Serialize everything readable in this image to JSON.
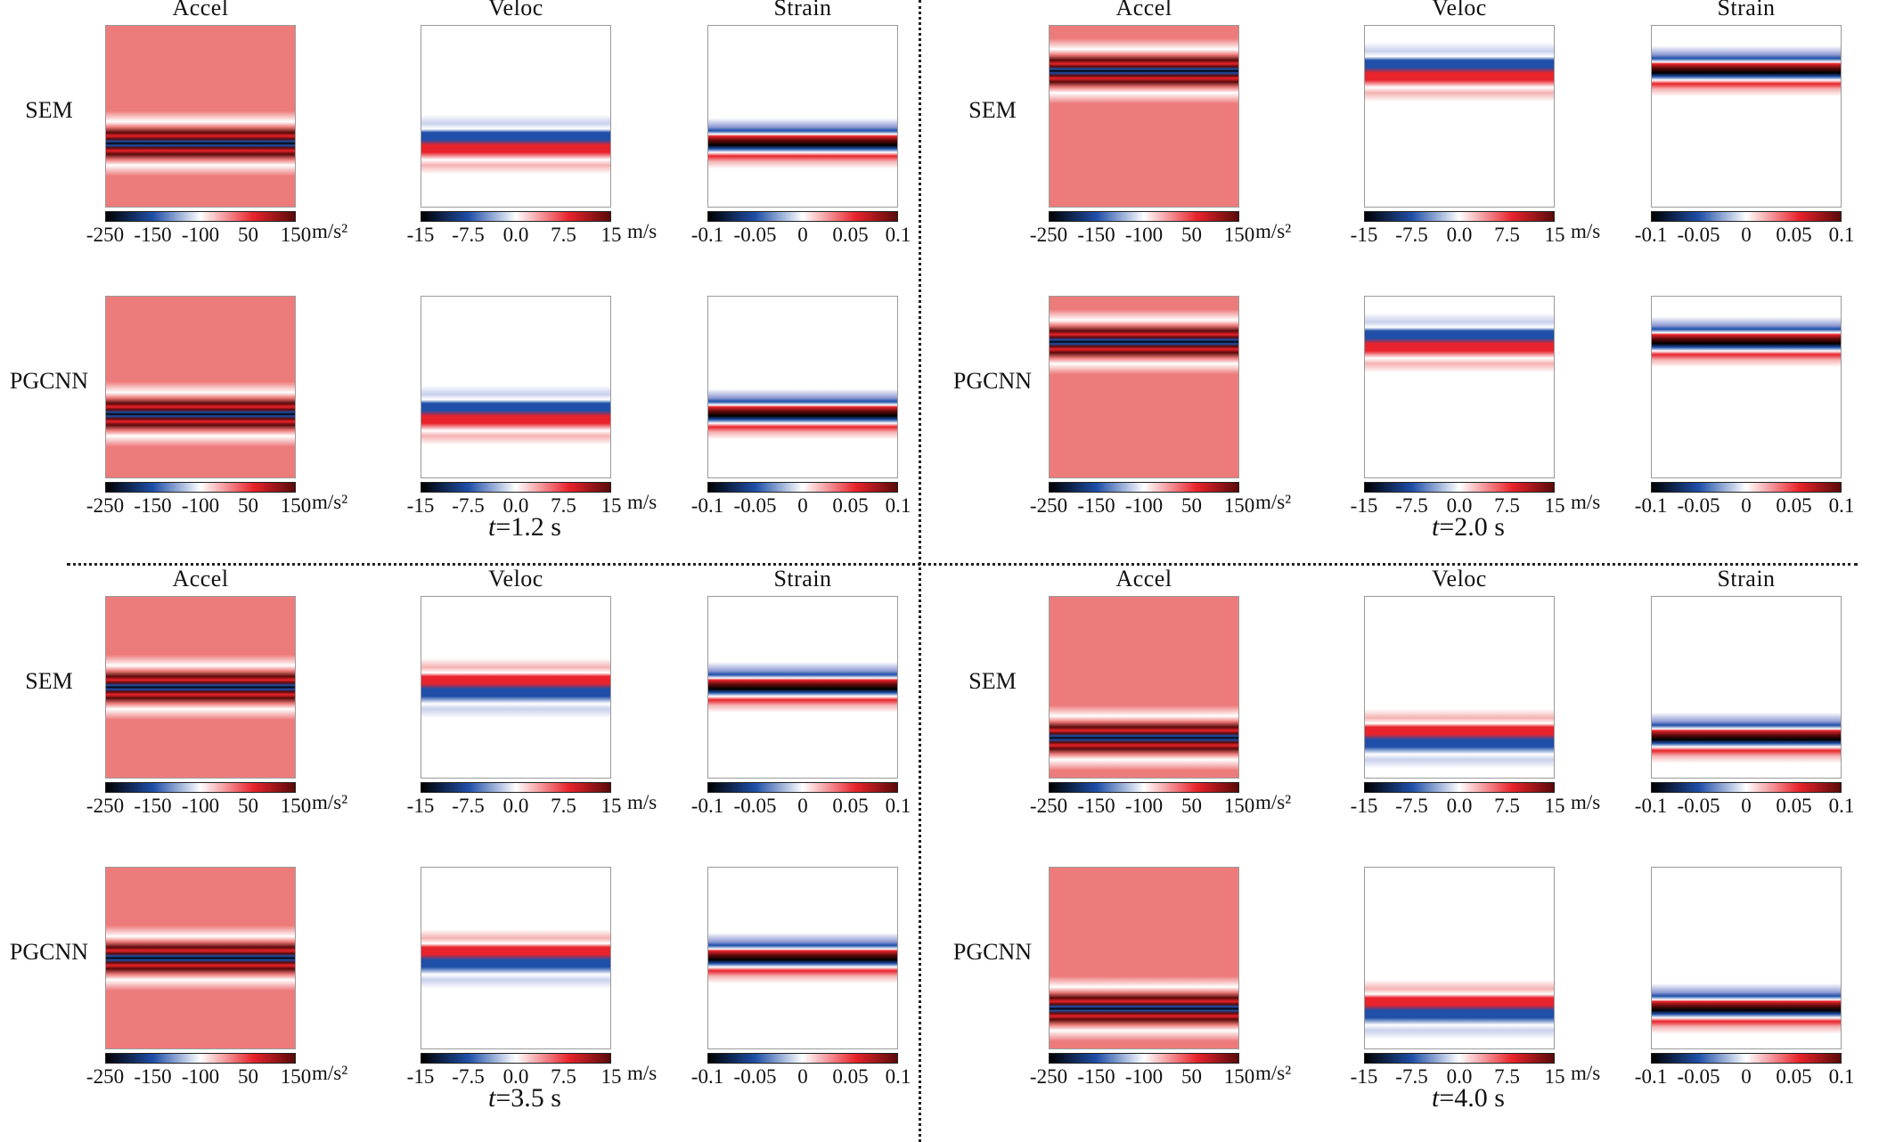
{
  "columns": [
    "Accel",
    "Veloc",
    "Strain"
  ],
  "rows": [
    "SEM",
    "PGCNN"
  ],
  "colorbars": {
    "Accel": {
      "ticks": [
        "-250",
        "-150",
        "-100",
        "50",
        "150"
      ],
      "unit": "m/s²",
      "range": [
        -250,
        150
      ]
    },
    "Veloc": {
      "ticks": [
        "-15",
        "-7.5",
        "0.0",
        "7.5",
        "15"
      ],
      "unit": "m/s",
      "range": [
        -15,
        15
      ]
    },
    "Strain": {
      "ticks": [
        "-0.1",
        "-0.05",
        "0",
        "0.05",
        "0.1"
      ],
      "unit": "",
      "range": [
        -0.1,
        0.1
      ]
    }
  },
  "colors": {
    "low": "#000000",
    "mid_low": "#1f4fa8",
    "zero": "#ffffff",
    "mid_high": "#e8232b",
    "high": "#5a0a0a",
    "accel_background": "#ee7b7b"
  },
  "chart_data": [
    {
      "type": "heatmap",
      "time": "t=1.2 s",
      "time_var": "t",
      "time_value": "=1.2 s",
      "wave_depth_fraction": 0.65
    },
    {
      "type": "heatmap",
      "time": "t=2.0 s",
      "time_var": "t",
      "time_value": "=2.0 s",
      "wave_depth_fraction": 0.25
    },
    {
      "type": "heatmap",
      "time": "t=3.5 s",
      "time_var": "t",
      "time_value": "=3.5 s",
      "wave_depth_fraction": 0.5
    },
    {
      "type": "heatmap",
      "time": "t=4.0 s",
      "time_var": "t",
      "time_value": "=4.0 s",
      "wave_depth_fraction": 0.78
    }
  ]
}
